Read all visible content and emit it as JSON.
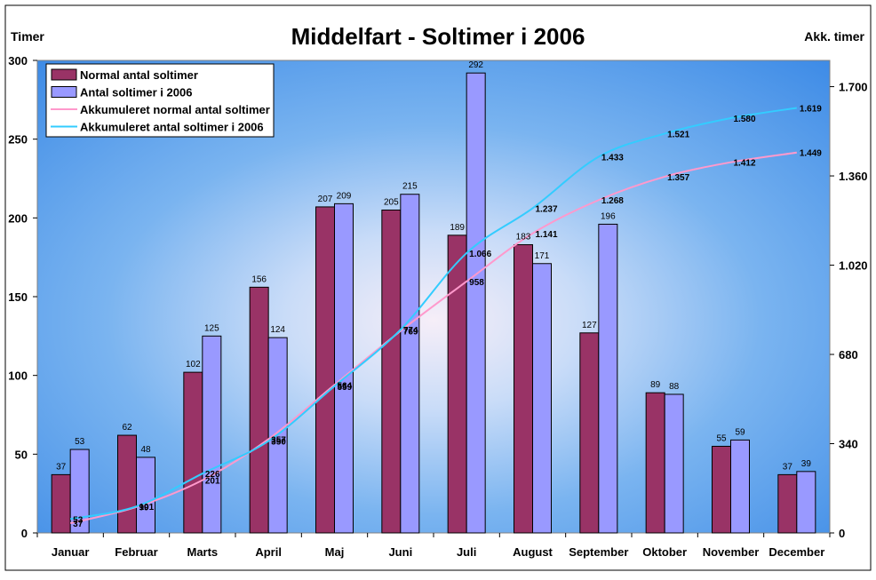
{
  "chart_data": {
    "type": "bar",
    "title": "Middelfart - Soltimer i 2006",
    "ylabel_left": "Timer",
    "ylabel_right": "Akk. timer",
    "ylim_left": [
      0,
      300
    ],
    "yticks_left": [
      0,
      50,
      100,
      150,
      200,
      250,
      300
    ],
    "ylim_right": [
      0,
      1800
    ],
    "yticks_right": [
      {
        "value": 0,
        "label": "0"
      },
      {
        "value": 340,
        "label": "340"
      },
      {
        "value": 680,
        "label": "680"
      },
      {
        "value": 1020,
        "label": "1.020"
      },
      {
        "value": 1360,
        "label": "1.360"
      },
      {
        "value": 1700,
        "label": "1.700"
      }
    ],
    "categories": [
      "Januar",
      "Februar",
      "Marts",
      "April",
      "Maj",
      "Juni",
      "Juli",
      "August",
      "September",
      "Oktober",
      "November",
      "December"
    ],
    "legend_position": "top-left",
    "series": [
      {
        "name": "Normal antal soltimer",
        "kind": "bar",
        "color": "#993366",
        "values": [
          37,
          62,
          102,
          156,
          207,
          205,
          189,
          183,
          127,
          89,
          55,
          37
        ],
        "labels": [
          "37",
          "62",
          "102",
          "156",
          "207",
          "205",
          "189",
          "183",
          "127",
          "89",
          "55",
          "37"
        ]
      },
      {
        "name": "Antal soltimer i 2006",
        "kind": "bar",
        "color": "#9999ff",
        "values": [
          53,
          48,
          125,
          124,
          209,
          215,
          292,
          171,
          196,
          88,
          59,
          39
        ],
        "labels": [
          "53",
          "48",
          "125",
          "124",
          "209",
          "215",
          "292",
          "171",
          "196",
          "88",
          "59",
          "39"
        ]
      },
      {
        "name": "Akkumuleret normal antal soltimer",
        "kind": "line",
        "color": "#ff99cc",
        "values": [
          37,
          99,
          201,
          357,
          564,
          769,
          958,
          1141,
          1268,
          1357,
          1412,
          1449
        ],
        "labels": [
          "37",
          "99",
          "201",
          "357",
          "564",
          "769",
          "958",
          "1.141",
          "1.268",
          "1.357",
          "1.412",
          "1.449"
        ]
      },
      {
        "name": "Akkumuleret antal soltimer i 2006",
        "kind": "line",
        "color": "#33ccff",
        "values": [
          53,
          101,
          226,
          350,
          559,
          774,
          1066,
          1237,
          1433,
          1521,
          1580,
          1619
        ],
        "labels": [
          "53",
          "101",
          "226",
          "350",
          "559",
          "774",
          "1.066",
          "1.237",
          "1.433",
          "1.521",
          "1.580",
          "1.619"
        ]
      }
    ]
  }
}
